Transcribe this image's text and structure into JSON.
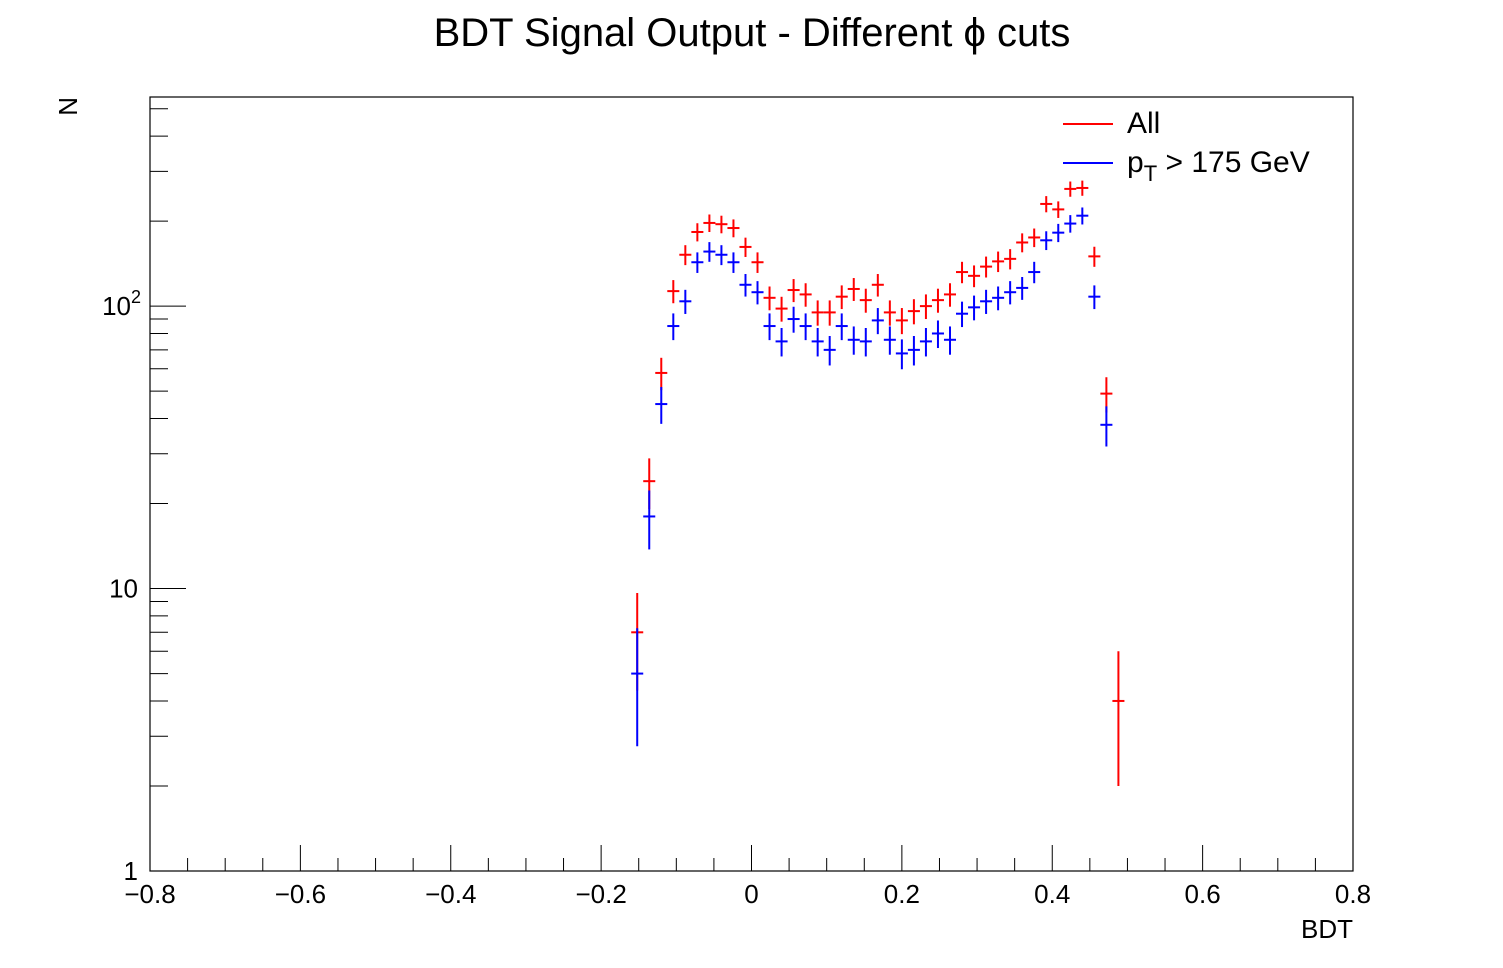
{
  "chart_data": {
    "type": "scatter",
    "title_main": "BDT Signal Output - Different ",
    "title_symbol": "ϕ",
    "title_tail": " cuts",
    "xlabel": "BDT",
    "ylabel": "N",
    "xlim": [
      -0.8,
      0.8
    ],
    "ylim": [
      1,
      550
    ],
    "yscale": "log",
    "grid": false,
    "legend_position": "top-right",
    "x_tick_labels": [
      {
        "v": -0.8,
        "label": "−0.8"
      },
      {
        "v": -0.6,
        "label": "−0.6"
      },
      {
        "v": -0.4,
        "label": "−0.4"
      },
      {
        "v": -0.2,
        "label": "−0.2"
      },
      {
        "v": 0.0,
        "label": "0"
      },
      {
        "v": 0.2,
        "label": "0.2"
      },
      {
        "v": 0.4,
        "label": "0.4"
      },
      {
        "v": 0.6,
        "label": "0.6"
      },
      {
        "v": 0.8,
        "label": "0.8"
      }
    ],
    "y_tick_labels": [
      {
        "v": 1,
        "base": "1",
        "exp": ""
      },
      {
        "v": 10,
        "base": "10",
        "exp": ""
      },
      {
        "v": 100,
        "base": "10",
        "exp": "2"
      }
    ],
    "bin_width": 0.016,
    "series": [
      {
        "name": "All",
        "legend_label": "All",
        "legend_sub": "",
        "legend_tail": "",
        "color": "#ff0000",
        "points": [
          [
            -0.152,
            7
          ],
          [
            -0.136,
            24
          ],
          [
            -0.12,
            58
          ],
          [
            -0.104,
            113
          ],
          [
            -0.088,
            152
          ],
          [
            -0.072,
            183
          ],
          [
            -0.056,
            197
          ],
          [
            -0.04,
            195
          ],
          [
            -0.024,
            189
          ],
          [
            -0.008,
            162
          ],
          [
            0.008,
            143
          ],
          [
            0.024,
            107
          ],
          [
            0.04,
            98
          ],
          [
            0.056,
            114
          ],
          [
            0.072,
            110
          ],
          [
            0.088,
            95
          ],
          [
            0.104,
            95
          ],
          [
            0.12,
            108
          ],
          [
            0.136,
            115
          ],
          [
            0.152,
            105
          ],
          [
            0.168,
            119
          ],
          [
            0.184,
            95
          ],
          [
            0.2,
            89
          ],
          [
            0.216,
            96
          ],
          [
            0.232,
            100
          ],
          [
            0.248,
            105
          ],
          [
            0.264,
            110
          ],
          [
            0.28,
            132
          ],
          [
            0.296,
            128
          ],
          [
            0.312,
            138
          ],
          [
            0.328,
            144
          ],
          [
            0.344,
            147
          ],
          [
            0.36,
            168
          ],
          [
            0.376,
            175
          ],
          [
            0.392,
            230
          ],
          [
            0.408,
            220
          ],
          [
            0.424,
            260
          ],
          [
            0.44,
            262
          ],
          [
            0.456,
            150
          ],
          [
            0.472,
            49
          ],
          [
            0.488,
            4
          ]
        ]
      },
      {
        "name": "pT > 175 GeV",
        "legend_label": "p",
        "legend_sub": "T",
        "legend_tail": " > 175 GeV",
        "color": "#0000ff",
        "points": [
          [
            -0.152,
            5
          ],
          [
            -0.136,
            18
          ],
          [
            -0.12,
            45
          ],
          [
            -0.104,
            85
          ],
          [
            -0.088,
            104
          ],
          [
            -0.072,
            143
          ],
          [
            -0.056,
            156
          ],
          [
            -0.04,
            152
          ],
          [
            -0.024,
            143
          ],
          [
            -0.008,
            119
          ],
          [
            0.008,
            112
          ],
          [
            0.024,
            85
          ],
          [
            0.04,
            75
          ],
          [
            0.056,
            90
          ],
          [
            0.072,
            85
          ],
          [
            0.088,
            75
          ],
          [
            0.104,
            70
          ],
          [
            0.12,
            85
          ],
          [
            0.136,
            76
          ],
          [
            0.152,
            75
          ],
          [
            0.168,
            89
          ],
          [
            0.184,
            76
          ],
          [
            0.2,
            68
          ],
          [
            0.216,
            70
          ],
          [
            0.232,
            75
          ],
          [
            0.248,
            80
          ],
          [
            0.264,
            76
          ],
          [
            0.28,
            94
          ],
          [
            0.296,
            99
          ],
          [
            0.312,
            104
          ],
          [
            0.328,
            107
          ],
          [
            0.344,
            112
          ],
          [
            0.36,
            116
          ],
          [
            0.376,
            132
          ],
          [
            0.392,
            171
          ],
          [
            0.408,
            182
          ],
          [
            0.424,
            196
          ],
          [
            0.44,
            209
          ],
          [
            0.456,
            108
          ],
          [
            0.472,
            38
          ]
        ]
      }
    ]
  }
}
